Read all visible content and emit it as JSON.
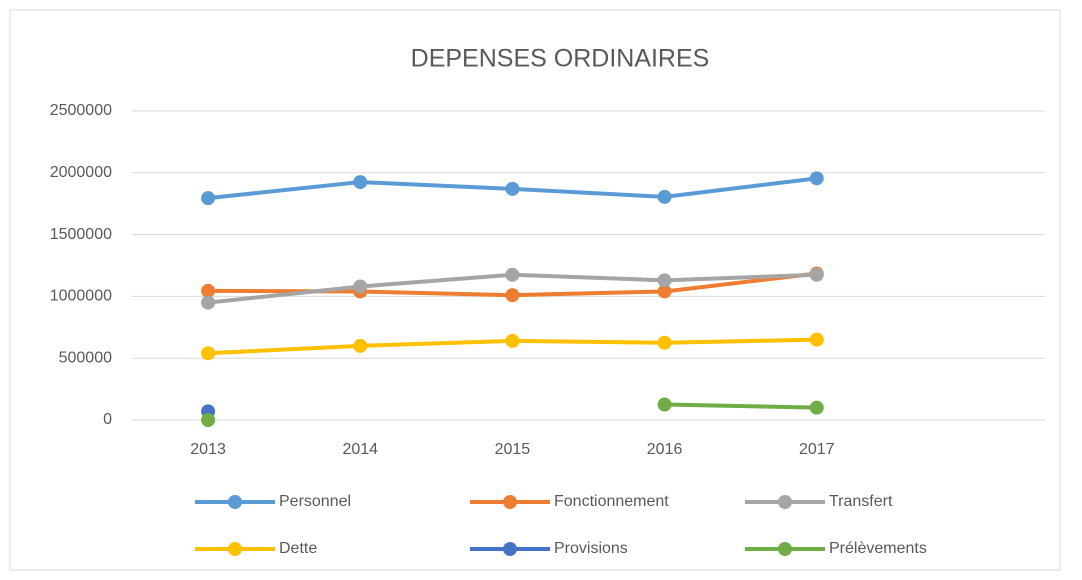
{
  "chart_data": {
    "type": "line",
    "title": "DEPENSES ORDINAIRES",
    "categories": [
      "2013",
      "2014",
      "2015",
      "2016",
      "2017",
      null
    ],
    "series": [
      {
        "name": "Personnel",
        "color": "#5b9bd5",
        "values": [
          1795000,
          1925000,
          1870000,
          1805000,
          1955000,
          null
        ]
      },
      {
        "name": "Fonctionnement",
        "color": "#ed7d31",
        "values": [
          1045000,
          1040000,
          1010000,
          1040000,
          1185000,
          null
        ]
      },
      {
        "name": "Transfert",
        "color": "#a5a5a5",
        "values": [
          950000,
          1080000,
          1175000,
          1130000,
          1175000,
          null
        ]
      },
      {
        "name": "Dette",
        "color": "#ffc000",
        "values": [
          540000,
          600000,
          640000,
          625000,
          650000,
          null
        ]
      },
      {
        "name": "Provisions",
        "color": "#4472c4",
        "values": [
          70000,
          null,
          null,
          null,
          null,
          null
        ]
      },
      {
        "name": "Prélèvements",
        "color": "#70ad47",
        "values": [
          0,
          null,
          null,
          125000,
          100000,
          null
        ]
      }
    ],
    "ylim": [
      0,
      2500000
    ],
    "yticks": [
      0,
      500000,
      1000000,
      1500000,
      2000000,
      2500000
    ],
    "grid": true,
    "legend": "bottom"
  }
}
